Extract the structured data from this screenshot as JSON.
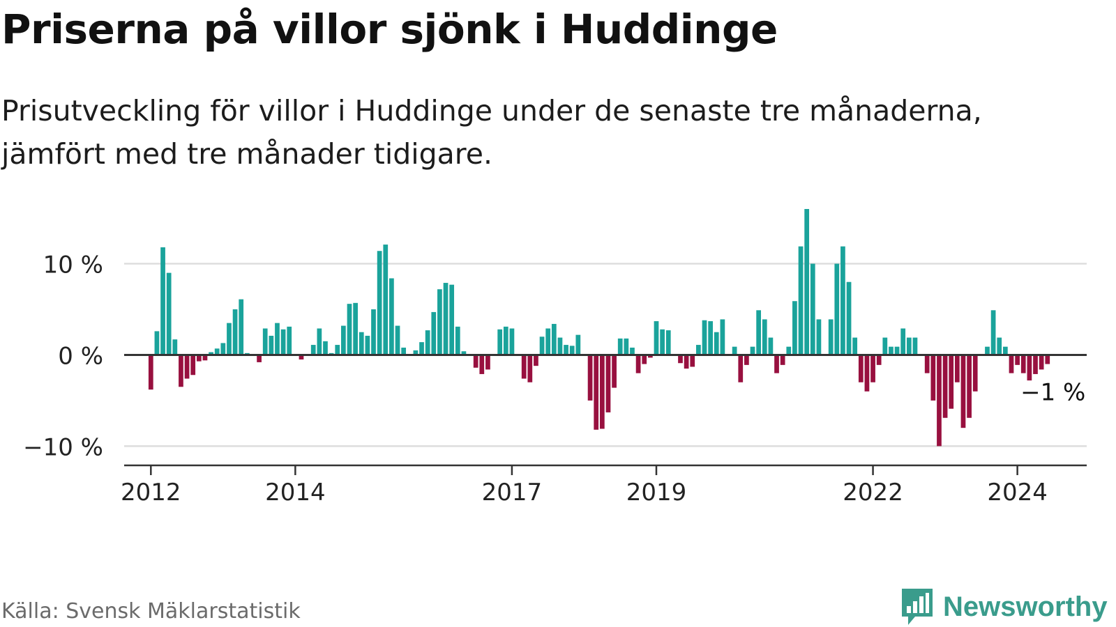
{
  "title": "Priserna på villor sjönk i Huddinge",
  "subtitle": "Prisutveckling för villor i Huddinge under de senaste tre månaderna, jämfört med tre månader tidigare.",
  "source": "Källa: Svensk Mäklarstatistik",
  "brand": "Newsworthy",
  "colors": {
    "positive": "#1aa39b",
    "negative": "#98103f",
    "brand": "#3a9c8c",
    "grid": "#dddddd",
    "axis": "#333333",
    "text": "#222222"
  },
  "chart_data": {
    "type": "bar",
    "title": "Priserna på villor sjönk i Huddinge",
    "xlabel": "",
    "ylabel": "",
    "ylim": [
      -11.5,
      16
    ],
    "xlim": [
      2011.63,
      2024.96
    ],
    "grid": true,
    "y_ticks": [
      {
        "value": 10,
        "label": "10 %"
      },
      {
        "value": 0,
        "label": "0 %"
      },
      {
        "value": -10,
        "label": "−10 %"
      }
    ],
    "x_ticks": [
      {
        "value": 2012,
        "label": "2012"
      },
      {
        "value": 2014,
        "label": "2014"
      },
      {
        "value": 2017,
        "label": "2017"
      },
      {
        "value": 2019,
        "label": "2019"
      },
      {
        "value": 2022,
        "label": "2022"
      },
      {
        "value": 2024,
        "label": "2024"
      }
    ],
    "annotation": {
      "label": "−1 %",
      "value": -1
    },
    "start_year": 2012,
    "start_month": 1,
    "values": [
      -3.8,
      2.6,
      11.8,
      9.0,
      1.7,
      -3.5,
      -2.6,
      -2.2,
      -0.7,
      -0.6,
      0.3,
      0.7,
      1.3,
      3.5,
      5.0,
      6.1,
      0.2,
      0.0,
      -0.8,
      2.9,
      2.1,
      3.5,
      2.8,
      3.1,
      0.0,
      -0.5,
      0.0,
      1.1,
      2.9,
      1.5,
      0.2,
      1.1,
      3.2,
      5.6,
      5.7,
      2.5,
      2.1,
      5.0,
      11.4,
      12.1,
      8.4,
      3.2,
      0.8,
      0.0,
      0.5,
      1.4,
      2.7,
      4.7,
      7.2,
      7.9,
      7.7,
      3.1,
      0.4,
      0.0,
      -1.4,
      -2.1,
      -1.6,
      0.0,
      2.8,
      3.1,
      2.9,
      0.0,
      -2.6,
      -3.0,
      -1.2,
      2.0,
      2.9,
      3.4,
      1.9,
      1.1,
      1.0,
      2.2,
      0.0,
      -5.0,
      -8.2,
      -8.1,
      -6.3,
      -3.6,
      1.8,
      1.8,
      0.8,
      -2.0,
      -1.0,
      -0.3,
      3.7,
      2.8,
      2.7,
      0.0,
      -0.9,
      -1.5,
      -1.3,
      1.1,
      3.8,
      3.7,
      2.5,
      3.9,
      0.0,
      0.9,
      -3.0,
      -1.1,
      0.9,
      4.9,
      3.9,
      1.9,
      -2.0,
      -1.1,
      0.9,
      5.9,
      11.9,
      16.0,
      10.0,
      3.9,
      0.0,
      3.9,
      10.0,
      11.9,
      8.0,
      1.9,
      -3.0,
      -4.0,
      -3.0,
      -1.1,
      1.9,
      0.9,
      0.9,
      2.9,
      1.9,
      1.9,
      0.0,
      -2.0,
      -5.0,
      -10.0,
      -6.9,
      -5.9,
      -3.0,
      -8.0,
      -6.9,
      -4.0,
      0.0,
      0.9,
      4.9,
      1.9,
      0.9,
      -2.0,
      -1.1,
      -2.0,
      -2.8,
      -2.1,
      -1.6,
      -1.0
    ]
  }
}
